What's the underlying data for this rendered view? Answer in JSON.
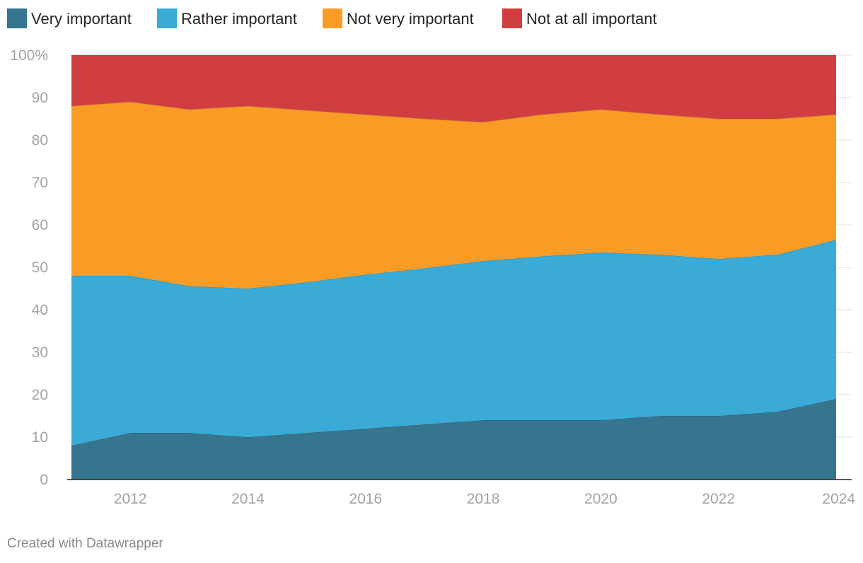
{
  "chart_data": {
    "type": "area",
    "stacked": true,
    "x": [
      2011,
      2012,
      2013,
      2014,
      2015,
      2016,
      2017,
      2018,
      2019,
      2020,
      2021,
      2022,
      2023,
      2024
    ],
    "series": [
      {
        "name": "Very important",
        "color": "#36758f",
        "values": [
          8,
          11,
          11,
          10,
          11,
          12,
          13,
          14,
          14,
          14,
          15,
          15,
          16,
          19
        ]
      },
      {
        "name": "Rather important",
        "color": "#3aabd6",
        "values": [
          40,
          37,
          34.6,
          35,
          35.5,
          36.3,
          36.8,
          37.5,
          38.6,
          39.5,
          38,
          37,
          37,
          37.5
        ]
      },
      {
        "name": "Not very important",
        "color": "#f99c25",
        "values": [
          40,
          41,
          41.6,
          43,
          40.5,
          37.7,
          35.2,
          32.7,
          33.4,
          33.7,
          33,
          33,
          32,
          29.5
        ]
      },
      {
        "name": "Not at all important",
        "color": "#d13e42",
        "values": [
          12,
          11,
          12.8,
          12,
          13,
          14,
          15,
          15.8,
          14,
          12.8,
          14,
          15,
          15,
          14
        ]
      }
    ],
    "ylim": [
      0,
      100
    ],
    "xlim": [
      2011,
      2024
    ],
    "y_ticks": [
      "0",
      "10",
      "20",
      "30",
      "40",
      "50",
      "60",
      "70",
      "80",
      "90",
      "100%"
    ],
    "x_ticks": [
      "2012",
      "2014",
      "2016",
      "2018",
      "2020",
      "2022",
      "2024"
    ],
    "legend_position": "top-left",
    "grid": true,
    "credit": "Created with Datawrapper"
  }
}
